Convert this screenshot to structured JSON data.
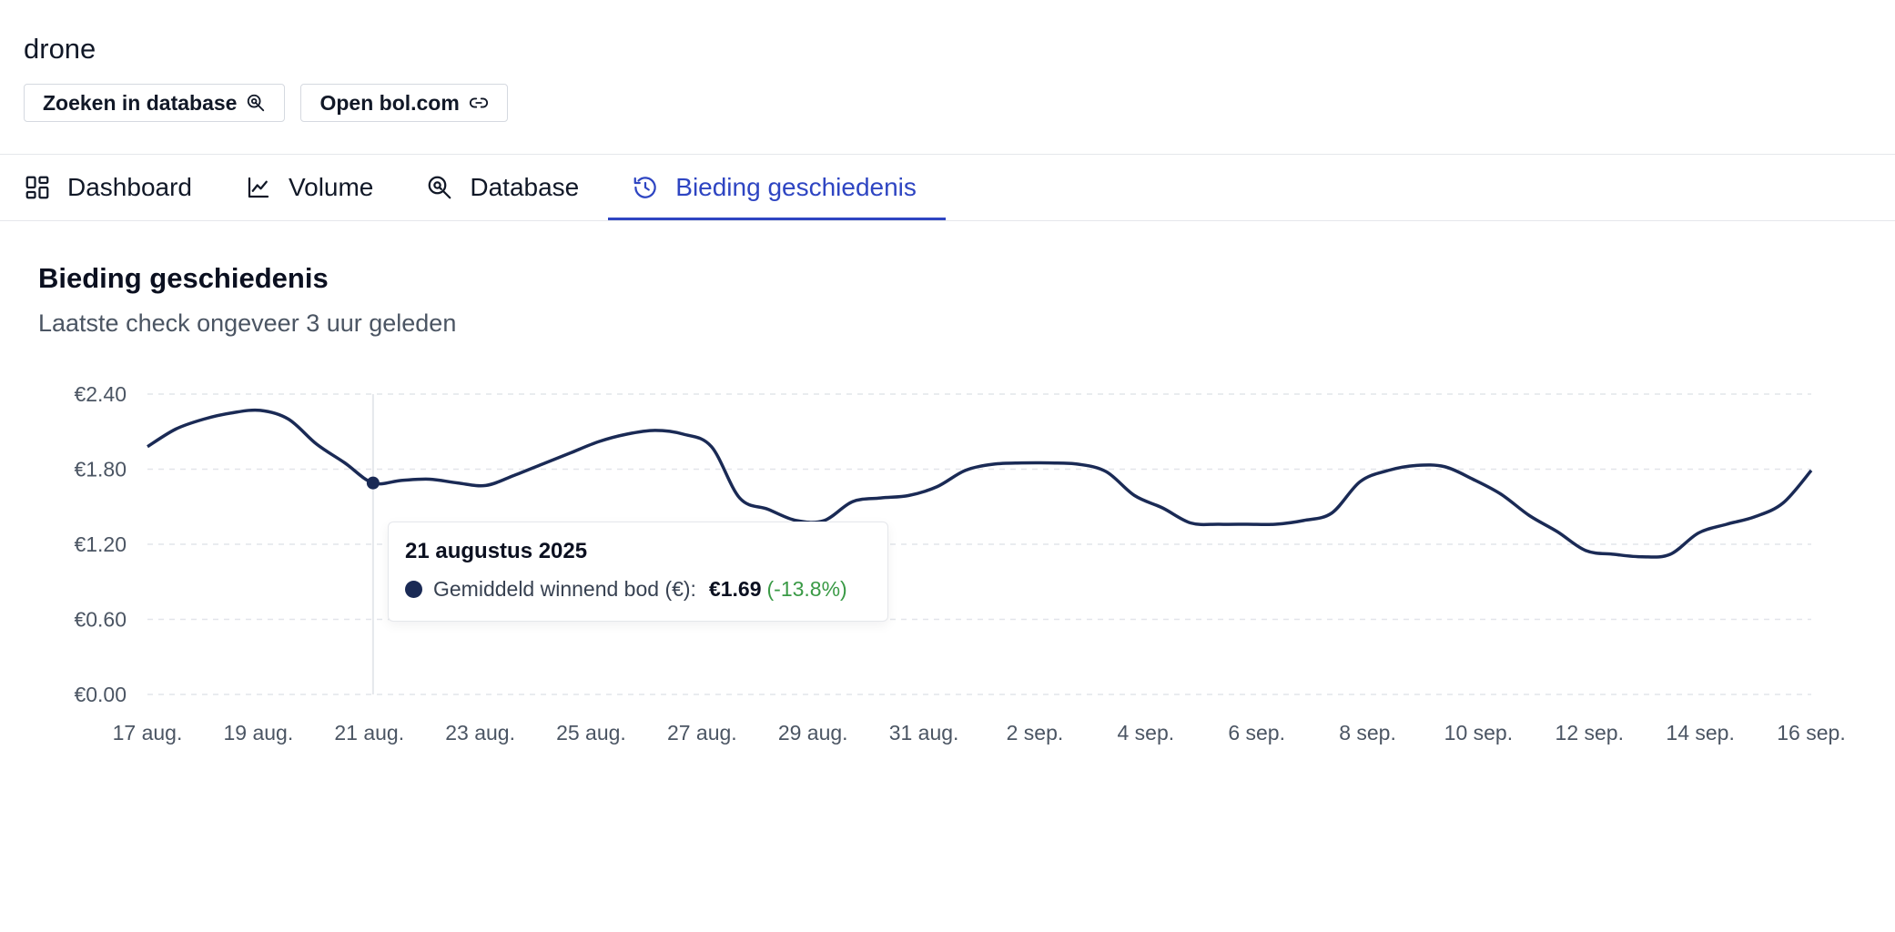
{
  "header": {
    "keyword": "drone",
    "buttons": [
      {
        "label": "Zoeken in database",
        "icon": "zoom-search-icon"
      },
      {
        "label": "Open bol.com",
        "icon": "link-icon"
      }
    ]
  },
  "tabs": [
    {
      "label": "Dashboard",
      "icon": "dashboard-icon",
      "active": false
    },
    {
      "label": "Volume",
      "icon": "line-chart-icon",
      "active": false
    },
    {
      "label": "Database",
      "icon": "zoom-search-icon",
      "active": false
    },
    {
      "label": "Bieding geschiedenis",
      "icon": "history-icon",
      "active": true
    }
  ],
  "section": {
    "title": "Bieding geschiedenis",
    "subtitle": "Laatste check ongeveer 3 uur geleden"
  },
  "tooltip": {
    "date": "21 augustus 2025",
    "series_label": "Gemiddeld winnend bod (€):",
    "value": "€1.69",
    "change": "(-13.8%)",
    "change_color": "#3a9a46"
  },
  "colors": {
    "accent": "#2e45c2",
    "line": "#1a2a55"
  },
  "chart_data": {
    "type": "line",
    "title": "",
    "xlabel": "",
    "ylabel": "",
    "ylim": [
      0,
      2.4
    ],
    "y_ticks": [
      "€0.00",
      "€0.60",
      "€1.20",
      "€1.80",
      "€2.40"
    ],
    "y_tick_values": [
      0,
      0.6,
      1.2,
      1.8,
      2.4
    ],
    "x_ticks": [
      "17 aug.",
      "19 aug.",
      "21 aug.",
      "23 aug.",
      "25 aug.",
      "27 aug.",
      "29 aug.",
      "31 aug.",
      "2 sep.",
      "4 sep.",
      "6 sep.",
      "8 sep.",
      "10 sep.",
      "12 sep.",
      "14 sep.",
      "16 sep."
    ],
    "grid": true,
    "highlight_index": 8,
    "series": [
      {
        "name": "Gemiddeld winnend bod (€)",
        "x": [
          "17 aug.",
          "17 aug.",
          "18 aug.",
          "19 aug.",
          "19 aug.",
          "20 aug.",
          "20 aug.",
          "21 aug.",
          "21 aug.",
          "22 aug.",
          "22 aug.",
          "23 aug.",
          "23 aug.",
          "24 aug.",
          "24 aug.",
          "25 aug.",
          "25 aug.",
          "26 aug.",
          "26 aug.",
          "27 aug.",
          "27 aug.",
          "28 aug.",
          "28 aug.",
          "29 aug.",
          "29 aug.",
          "30 aug.",
          "30 aug.",
          "31 aug.",
          "31 aug.",
          "1 sep.",
          "1 sep.",
          "2 sep.",
          "2 sep.",
          "3 sep.",
          "3 sep.",
          "4 sep.",
          "4 sep.",
          "5 sep.",
          "5 sep.",
          "6 sep.",
          "6 sep.",
          "7 sep.",
          "7 sep.",
          "8 sep.",
          "8 sep.",
          "9 sep.",
          "9 sep.",
          "10 sep.",
          "10 sep.",
          "11 sep.",
          "11 sep.",
          "12 sep.",
          "12 sep.",
          "13 sep.",
          "13 sep.",
          "14 sep.",
          "14 sep.",
          "15 sep.",
          "15 sep.",
          "16 sep."
        ],
        "values": [
          1.98,
          2.12,
          2.2,
          2.25,
          2.27,
          2.2,
          2.0,
          1.85,
          1.69,
          1.71,
          1.72,
          1.69,
          1.67,
          1.75,
          1.84,
          1.93,
          2.02,
          2.08,
          2.11,
          2.08,
          1.98,
          1.57,
          1.48,
          1.39,
          1.39,
          1.54,
          1.57,
          1.59,
          1.66,
          1.79,
          1.84,
          1.85,
          1.85,
          1.84,
          1.78,
          1.59,
          1.49,
          1.37,
          1.36,
          1.36,
          1.36,
          1.39,
          1.45,
          1.7,
          1.79,
          1.83,
          1.82,
          1.72,
          1.6,
          1.43,
          1.3,
          1.15,
          1.12,
          1.1,
          1.12,
          1.29,
          1.36,
          1.42,
          1.53,
          1.79
        ]
      }
    ]
  }
}
